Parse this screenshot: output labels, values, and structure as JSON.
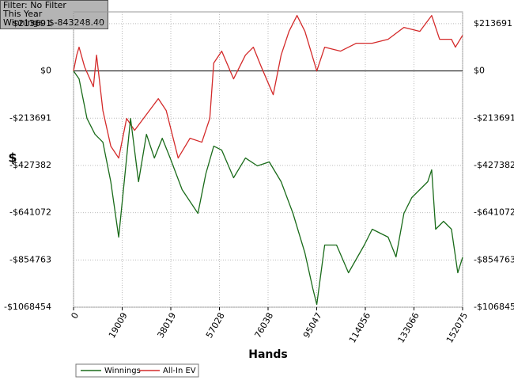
{
  "filter_box": {
    "lines": [
      "Filter: No Filter",
      "This Year",
      "Winnings: $-843248.40"
    ]
  },
  "chart_data": {
    "type": "line",
    "xlabel": "Hands",
    "ylabel": "$",
    "xlim": [
      0,
      152075
    ],
    "xticks": [
      0,
      19009,
      38019,
      57028,
      76038,
      95047,
      114056,
      133066,
      152075
    ],
    "ylim": [
      -1068454,
      267114
    ],
    "yticks": [
      {
        "value": 213691,
        "label": "$213691"
      },
      {
        "value": 0,
        "label": "$0"
      },
      {
        "value": -213691,
        "label": "-$213691"
      },
      {
        "value": -427382,
        "label": "-$427382"
      },
      {
        "value": -641072,
        "label": "-$641072"
      },
      {
        "value": -854763,
        "label": "-$854763"
      },
      {
        "value": -1068454,
        "label": "-$1068454"
      }
    ],
    "grid": true,
    "legend": "bottom-left",
    "series": [
      {
        "name": "Winnings",
        "color": "#1a6b1a",
        "x": [
          0,
          2168,
          5265,
          8362,
          11459,
          14556,
          17653,
          19201,
          22298,
          25395,
          28492,
          31589,
          34686,
          37783,
          42429,
          48623,
          51720,
          54817,
          57914,
          62559,
          67205,
          71850,
          76496,
          81141,
          85787,
          90432,
          93529,
          95077,
          98175,
          102820,
          107466,
          113660,
          116757,
          122951,
          126048,
          129145,
          132242,
          138436,
          139984,
          141533,
          144630,
          147727,
          150204,
          152075
        ],
        "values": [
          0,
          -35790,
          -214740,
          -286320,
          -322110,
          -501060,
          -751590,
          -572640,
          -214740,
          -501060,
          -286320,
          -393690,
          -304215,
          -393690,
          -536850,
          -644220,
          -465270,
          -340005,
          -357900,
          -483165,
          -393690,
          -429480,
          -411585,
          -501060,
          -644220,
          -823170,
          -984225,
          -1055805,
          -787380,
          -787380,
          -912645,
          -787380,
          -715800,
          -751590,
          -841065,
          -644220,
          -572640,
          -501060,
          -447375,
          -715800,
          -680010,
          -715800,
          -912645,
          -843248
        ]
      },
      {
        "name": "All-In EV",
        "color": "#d42a2a",
        "x": [
          0,
          1239,
          2168,
          4336,
          7743,
          8981,
          11459,
          14556,
          17653,
          20750,
          23847,
          28492,
          33138,
          36235,
          40880,
          45526,
          50171,
          53268,
          54817,
          57914,
          62559,
          67205,
          70302,
          73399,
          78044,
          81141,
          84238,
          87335,
          90432,
          95077,
          98175,
          104369,
          110563,
          116757,
          122951,
          129145,
          135339,
          139984,
          143081,
          147727,
          149275,
          152075
        ],
        "values": [
          0,
          71580,
          107370,
          17895,
          -71580,
          71580,
          -178950,
          -340005,
          -393690,
          -214740,
          -268425,
          -196845,
          -125265,
          -178950,
          -393690,
          -304215,
          -322110,
          -214740,
          35790,
          89475,
          -35790,
          71580,
          107370,
          17895,
          -107370,
          71580,
          178950,
          250530,
          178950,
          0,
          107370,
          89475,
          125265,
          125265,
          143160,
          196845,
          178950,
          250530,
          143160,
          143160,
          107370,
          161055
        ]
      }
    ]
  }
}
